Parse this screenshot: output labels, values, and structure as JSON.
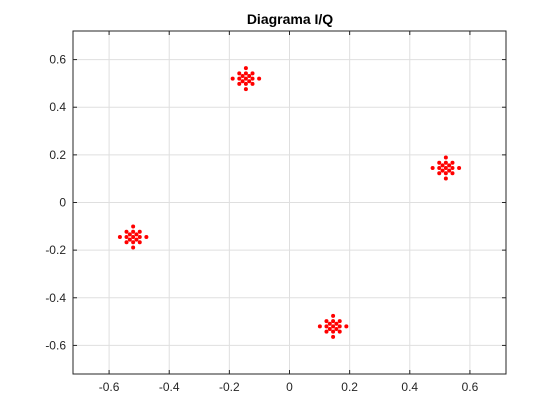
{
  "chart_data": {
    "type": "scatter",
    "title": "Diagrama I/Q",
    "xlabel": "",
    "ylabel": "",
    "xlim": [
      -0.72,
      0.72
    ],
    "ylim": [
      -0.72,
      0.72
    ],
    "xticks": [
      -0.6,
      -0.4,
      -0.2,
      0,
      0.2,
      0.4,
      0.6
    ],
    "xtick_labels": [
      "-0.6",
      "-0.4",
      "-0.2",
      "0",
      "0.2",
      "0.4",
      "0.6"
    ],
    "yticks": [
      -0.6,
      -0.4,
      -0.2,
      0,
      0.2,
      0.4,
      0.6
    ],
    "ytick_labels": [
      "-0.6",
      "-0.4",
      "-0.2",
      "0",
      "0.2",
      "0.4",
      "0.6"
    ],
    "grid": true,
    "legend": "none",
    "marker_color": "#ff0000",
    "clusters": [
      {
        "center": [
          -0.145,
          0.52
        ]
      },
      {
        "center": [
          0.52,
          0.145
        ]
      },
      {
        "center": [
          -0.52,
          -0.145
        ]
      },
      {
        "center": [
          0.145,
          -0.52
        ]
      }
    ],
    "cluster_offsets": [
      [
        0.0,
        0.0
      ],
      [
        0.022,
        0.0
      ],
      [
        0.044,
        0.0
      ],
      [
        -0.022,
        0.0
      ],
      [
        -0.044,
        0.0
      ],
      [
        0.0,
        0.022
      ],
      [
        0.0,
        0.044
      ],
      [
        0.0,
        -0.022
      ],
      [
        0.0,
        -0.044
      ],
      [
        0.011,
        0.011
      ],
      [
        -0.011,
        0.011
      ],
      [
        0.011,
        -0.011
      ],
      [
        -0.011,
        -0.011
      ],
      [
        0.022,
        0.022
      ],
      [
        -0.022,
        0.022
      ],
      [
        0.022,
        -0.022
      ],
      [
        -0.022,
        -0.022
      ]
    ]
  }
}
